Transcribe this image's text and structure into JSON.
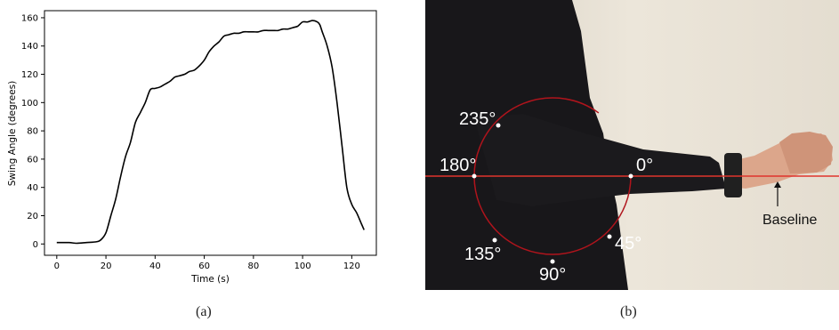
{
  "chart_data": {
    "type": "line",
    "xlabel": "Time (s)",
    "ylabel": "Swing Angle (degrees)",
    "xlim": [
      -5,
      130
    ],
    "ylim": [
      -8,
      165
    ],
    "xticks": [
      0,
      20,
      40,
      60,
      80,
      100,
      120
    ],
    "yticks": [
      0,
      20,
      40,
      60,
      80,
      100,
      120,
      140,
      160
    ],
    "grid": false,
    "series": [
      {
        "color": "#000000",
        "x": [
          0,
          5,
          8,
          12,
          16,
          18,
          20,
          22,
          24,
          26,
          28,
          30,
          32,
          34,
          36,
          38,
          40,
          42,
          44,
          46,
          48,
          50,
          52,
          54,
          56,
          58,
          60,
          62,
          64,
          66,
          68,
          70,
          72,
          74,
          76,
          78,
          80,
          82,
          84,
          86,
          88,
          90,
          92,
          94,
          96,
          98,
          100,
          102,
          104,
          106,
          107,
          108,
          110,
          112,
          114,
          116,
          118,
          120,
          122,
          124,
          125
        ],
        "y": [
          1,
          1,
          0.5,
          1,
          1.5,
          3,
          8,
          20,
          32,
          48,
          62,
          72,
          86,
          93,
          100,
          109,
          110,
          111,
          113,
          115,
          118,
          119,
          120,
          122,
          123,
          126,
          130,
          136,
          140,
          143,
          147,
          148,
          149,
          149,
          150,
          150,
          150,
          150,
          151,
          151,
          151,
          151,
          152,
          152,
          153,
          154,
          157,
          157,
          158,
          157,
          155,
          150,
          140,
          125,
          100,
          70,
          40,
          28,
          22,
          14,
          10
        ]
      }
    ]
  },
  "photo": {
    "angle_labels": [
      "235°",
      "180°",
      "0°",
      "135°",
      "90°",
      "45°"
    ],
    "baseline_label": "Baseline"
  },
  "captions": {
    "a": "(a)",
    "b": "(b)"
  },
  "colors": {
    "line": "#000000",
    "reference_red": "#e0342c",
    "arc": "#b0141c",
    "background_wall": "#e9e2d6",
    "sweater": "#18171a",
    "skin": "#dca68b"
  }
}
